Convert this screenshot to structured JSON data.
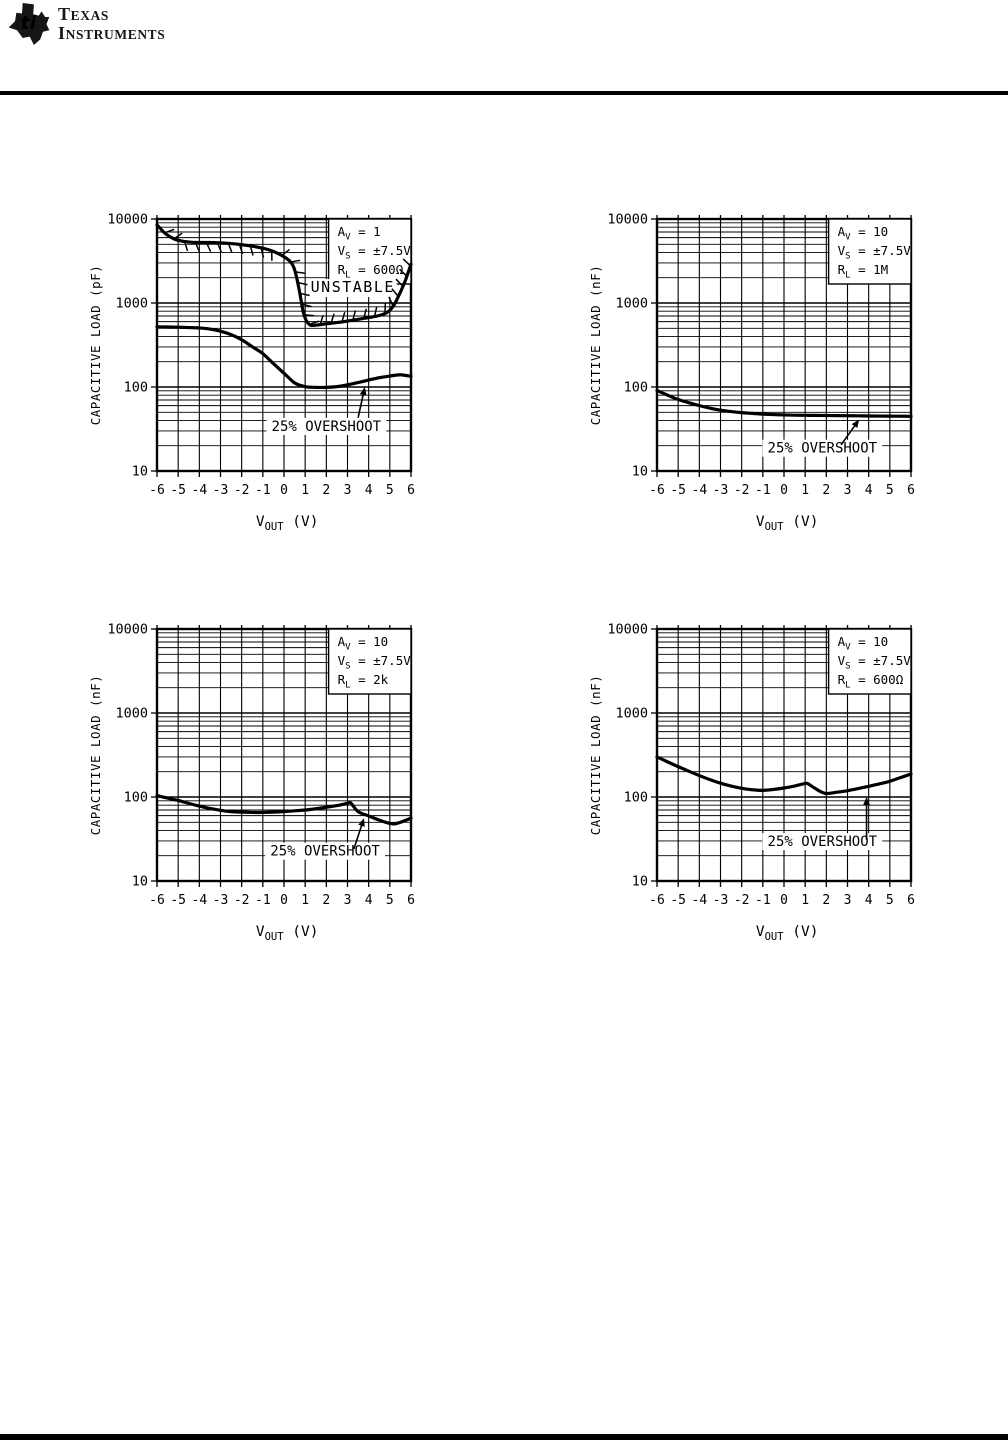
{
  "logo": {
    "line1": "TEXAS",
    "line2": "INSTRUMENTS",
    "glyph": "texas-state-ti-icon",
    "glyph_letters": "ti"
  },
  "chart_data": [
    {
      "type": "line",
      "title": "",
      "xlabel": "VOUT (V)",
      "xlabel_parts": {
        "main": "V",
        "sub": "OUT",
        "suffix": " (V)"
      },
      "ylabel": "CAPACITIVE LOAD (pF)",
      "xlim": [
        -6,
        6
      ],
      "ylim": [
        10,
        10000
      ],
      "yscale": "log",
      "xticks": [
        -6,
        -5,
        -4,
        -3,
        -2,
        -1,
        0,
        1,
        2,
        3,
        4,
        5,
        6
      ],
      "yticks": [
        10,
        100,
        1000,
        10000
      ],
      "ytick_labels": [
        "10",
        "100",
        "1000",
        "10000"
      ],
      "grid": "full-log-minor",
      "legend_position": "none",
      "conditions": [
        {
          "sym": "A",
          "sub": "V",
          "val": "= 1"
        },
        {
          "sym": "V",
          "sub": "S",
          "val": "= ±7.5V"
        },
        {
          "sym": "R",
          "sub": "L",
          "val": "= 600Ω"
        }
      ],
      "series": [
        {
          "name": "unstable-boundary",
          "hatched": true,
          "points": [
            [
              -6,
              8500
            ],
            [
              -5.6,
              6700
            ],
            [
              -5.2,
              5800
            ],
            [
              -4.8,
              5450
            ],
            [
              -4.4,
              5300
            ],
            [
              -4,
              5250
            ],
            [
              -3.5,
              5250
            ],
            [
              -3,
              5200
            ],
            [
              -2.5,
              5100
            ],
            [
              -2,
              4950
            ],
            [
              -1.5,
              4750
            ],
            [
              -1,
              4500
            ],
            [
              -0.6,
              4200
            ],
            [
              -0.3,
              3900
            ],
            [
              0,
              3550
            ],
            [
              0.25,
              3200
            ],
            [
              0.45,
              2700
            ],
            [
              0.6,
              2000
            ],
            [
              0.75,
              1300
            ],
            [
              0.9,
              800
            ],
            [
              1.05,
              620
            ],
            [
              1.25,
              545
            ],
            [
              1.5,
              545
            ],
            [
              2,
              565
            ],
            [
              2.5,
              585
            ],
            [
              3,
              610
            ],
            [
              3.5,
              640
            ],
            [
              4,
              670
            ],
            [
              4.5,
              710
            ],
            [
              4.9,
              780
            ],
            [
              5.2,
              950
            ],
            [
              5.5,
              1350
            ],
            [
              5.75,
              1900
            ],
            [
              6,
              2900
            ]
          ]
        },
        {
          "name": "overshoot-25pct",
          "hatched": false,
          "points": [
            [
              -6,
              520
            ],
            [
              -5.5,
              518
            ],
            [
              -5,
              515
            ],
            [
              -4.5,
              510
            ],
            [
              -4,
              505
            ],
            [
              -3.5,
              490
            ],
            [
              -3,
              462
            ],
            [
              -2.5,
              420
            ],
            [
              -2,
              365
            ],
            [
              -1.5,
              302
            ],
            [
              -1,
              250
            ],
            [
              -0.5,
              190
            ],
            [
              0,
              146
            ],
            [
              0.5,
              112
            ],
            [
              1,
              101
            ],
            [
              1.5,
              99
            ],
            [
              2,
              99
            ],
            [
              2.5,
              101
            ],
            [
              3,
              106
            ],
            [
              3.5,
              113
            ],
            [
              4,
              121
            ],
            [
              4.5,
              129
            ],
            [
              5,
              135
            ],
            [
              5.5,
              140
            ],
            [
              6,
              134
            ]
          ]
        }
      ],
      "annotations": {
        "unstable": {
          "text": "UNSTABLE",
          "x": 3.25,
          "y": 1350
        },
        "overshoot": {
          "text": "25% OVERSHOOT",
          "x": 2.0,
          "y": 30,
          "arrow_from": [
            3.5,
            43
          ],
          "arrow_to": [
            3.82,
            100
          ]
        }
      }
    },
    {
      "type": "line",
      "title": "",
      "xlabel": "VOUT (V)",
      "xlabel_parts": {
        "main": "V",
        "sub": "OUT",
        "suffix": " (V)"
      },
      "ylabel": "CAPACITIVE LOAD (nF)",
      "xlim": [
        -6,
        6
      ],
      "ylim": [
        10,
        10000
      ],
      "yscale": "log",
      "xticks": [
        -6,
        -5,
        -4,
        -3,
        -2,
        -1,
        0,
        1,
        2,
        3,
        4,
        5,
        6
      ],
      "yticks": [
        10,
        100,
        1000,
        10000
      ],
      "ytick_labels": [
        "10",
        "100",
        "1000",
        "10000"
      ],
      "grid": "full-log-minor",
      "legend_position": "none",
      "conditions": [
        {
          "sym": "A",
          "sub": "V",
          "val": "= 10"
        },
        {
          "sym": "V",
          "sub": "S",
          "val": "= ±7.5V"
        },
        {
          "sym": "R",
          "sub": "L",
          "val": "= 1M"
        }
      ],
      "series": [
        {
          "name": "overshoot-25pct",
          "hatched": false,
          "points": [
            [
              -6,
              91
            ],
            [
              -5.5,
              80
            ],
            [
              -5,
              71
            ],
            [
              -4.5,
              65
            ],
            [
              -4,
              60
            ],
            [
              -3.5,
              56
            ],
            [
              -3,
              53
            ],
            [
              -2.5,
              51
            ],
            [
              -2,
              49.5
            ],
            [
              -1.5,
              48.5
            ],
            [
              -1,
              47.5
            ],
            [
              -0.5,
              47
            ],
            [
              0,
              46.5
            ],
            [
              0.5,
              46.2
            ],
            [
              1,
              46
            ],
            [
              1.5,
              45.9
            ],
            [
              2,
              45.8
            ],
            [
              2.5,
              45.6
            ],
            [
              3,
              45.5
            ],
            [
              3.5,
              45.4
            ],
            [
              4,
              45.2
            ],
            [
              4.5,
              45.1
            ],
            [
              5,
              45
            ],
            [
              5.5,
              44.9
            ],
            [
              6,
              44.8
            ]
          ]
        }
      ],
      "annotations": {
        "overshoot": {
          "text": "25% OVERSHOOT",
          "x": 1.81,
          "y": 16.5,
          "arrow_from": [
            2.7,
            20.5
          ],
          "arrow_to": [
            3.55,
            41
          ]
        }
      }
    },
    {
      "type": "line",
      "title": "",
      "xlabel": "VOUT (V)",
      "xlabel_parts": {
        "main": "V",
        "sub": "OUT",
        "suffix": " (V)"
      },
      "ylabel": "CAPACITIVE LOAD (nF)",
      "xlim": [
        -6,
        6
      ],
      "ylim": [
        10,
        10000
      ],
      "yscale": "log",
      "xticks": [
        -6,
        -5,
        -4,
        -3,
        -2,
        -1,
        0,
        1,
        2,
        3,
        4,
        5,
        6
      ],
      "yticks": [
        10,
        100,
        1000,
        10000
      ],
      "ytick_labels": [
        "10",
        "100",
        "1000",
        "10000"
      ],
      "grid": "full-log-minor",
      "legend_position": "none",
      "conditions": [
        {
          "sym": "A",
          "sub": "V",
          "val": "= 10"
        },
        {
          "sym": "V",
          "sub": "S",
          "val": "= ±7.5V"
        },
        {
          "sym": "R",
          "sub": "L",
          "val": "= 2k"
        }
      ],
      "series": [
        {
          "name": "overshoot-25pct",
          "hatched": false,
          "points": [
            [
              -6,
              104
            ],
            [
              -5.5,
              97
            ],
            [
              -5,
              91
            ],
            [
              -4.5,
              84
            ],
            [
              -4,
              78
            ],
            [
              -3.5,
              73
            ],
            [
              -3,
              69.5
            ],
            [
              -2.5,
              67
            ],
            [
              -2,
              66
            ],
            [
              -1.5,
              65.5
            ],
            [
              -1,
              65.5
            ],
            [
              -0.5,
              66
            ],
            [
              0,
              67
            ],
            [
              0.5,
              68.5
            ],
            [
              1,
              70
            ],
            [
              1.5,
              72.5
            ],
            [
              2,
              75.5
            ],
            [
              2.5,
              79
            ],
            [
              3,
              84
            ],
            [
              3.15,
              85
            ],
            [
              3.5,
              67
            ],
            [
              4,
              59.5
            ],
            [
              4.5,
              53
            ],
            [
              5,
              48.5
            ],
            [
              5.25,
              48
            ],
            [
              5.6,
              51
            ],
            [
              6,
              56
            ]
          ]
        }
      ],
      "annotations": {
        "overshoot": {
          "text": "25% OVERSHOOT",
          "x": 1.94,
          "y": 20,
          "arrow_from": [
            3.3,
            24
          ],
          "arrow_to": [
            3.78,
            56
          ]
        }
      }
    },
    {
      "type": "line",
      "title": "",
      "xlabel": "VOUT (V)",
      "xlabel_parts": {
        "main": "V",
        "sub": "OUT",
        "suffix": " (V)"
      },
      "ylabel": "CAPACITIVE LOAD (nF)",
      "xlim": [
        -6,
        6
      ],
      "ylim": [
        10,
        10000
      ],
      "yscale": "log",
      "xticks": [
        -6,
        -5,
        -4,
        -3,
        -2,
        -1,
        0,
        1,
        2,
        3,
        4,
        5,
        6
      ],
      "yticks": [
        10,
        100,
        1000,
        10000
      ],
      "ytick_labels": [
        "10",
        "100",
        "1000",
        "10000"
      ],
      "grid": "full-log-minor",
      "legend_position": "none",
      "conditions": [
        {
          "sym": "A",
          "sub": "V",
          "val": "= 10"
        },
        {
          "sym": "V",
          "sub": "S",
          "val": "= ±7.5V"
        },
        {
          "sym": "R",
          "sub": "L",
          "val": "= 600Ω"
        }
      ],
      "series": [
        {
          "name": "overshoot-25pct",
          "hatched": false,
          "points": [
            [
              -6,
              300
            ],
            [
              -5.5,
              262
            ],
            [
              -5,
              230
            ],
            [
              -4.5,
              203
            ],
            [
              -4,
              180
            ],
            [
              -3.5,
              161
            ],
            [
              -3,
              146
            ],
            [
              -2.5,
              135
            ],
            [
              -2,
              127
            ],
            [
              -1.5,
              122
            ],
            [
              -1,
              120
            ],
            [
              -0.5,
              123
            ],
            [
              0,
              128
            ],
            [
              0.5,
              135
            ],
            [
              0.9,
              143
            ],
            [
              1.1,
              145
            ],
            [
              1.4,
              130
            ],
            [
              1.7,
              117
            ],
            [
              2,
              110
            ],
            [
              2.5,
              114
            ],
            [
              3,
              119
            ],
            [
              3.5,
              126
            ],
            [
              4,
              134
            ],
            [
              4.5,
              143
            ],
            [
              5,
              154
            ],
            [
              5.5,
              170
            ],
            [
              6,
              188
            ]
          ]
        }
      ],
      "annotations": {
        "overshoot": {
          "text": "25% OVERSHOOT",
          "x": 1.81,
          "y": 26,
          "arrow_from": [
            3.9,
            31
          ],
          "arrow_to": [
            3.9,
            100
          ]
        }
      }
    }
  ],
  "colors": {
    "ink": "#000000",
    "paper": "#ffffff"
  }
}
